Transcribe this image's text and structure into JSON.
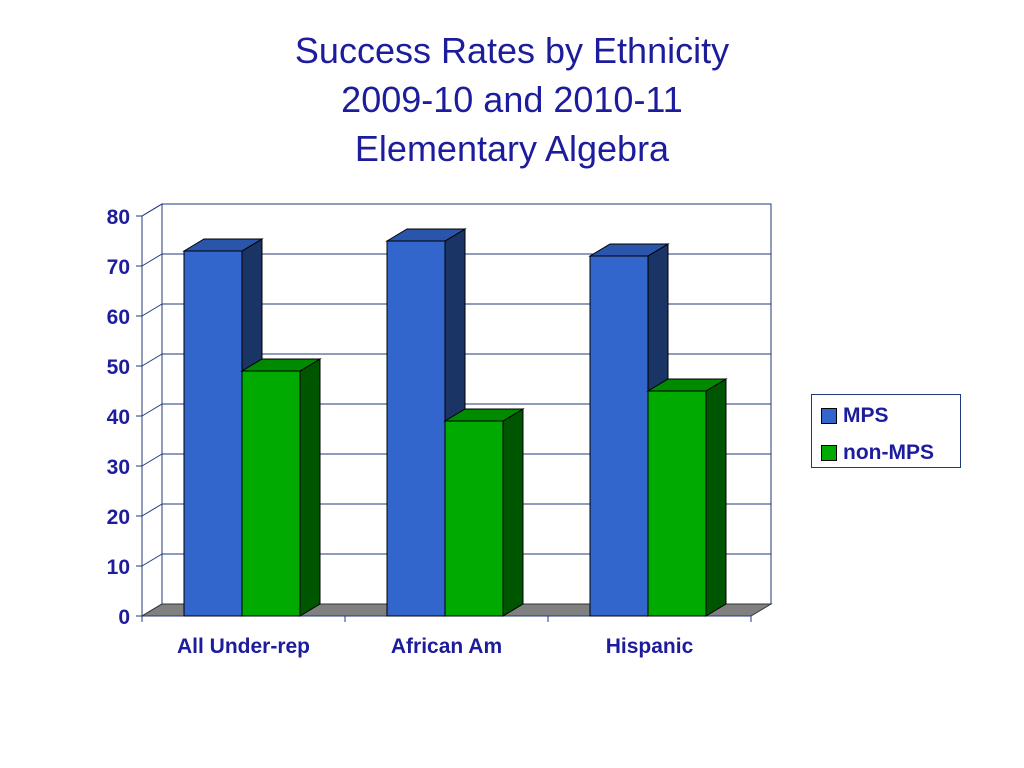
{
  "chart_data": {
    "type": "bar",
    "title_lines": [
      "Success Rates by Ethnicity",
      "2009-10 and 2010-11",
      "Elementary Algebra"
    ],
    "categories": [
      "All Under-rep",
      "African Am",
      "Hispanic"
    ],
    "series": [
      {
        "name": "MPS",
        "values": [
          73,
          75,
          72
        ],
        "color": "#3366cc",
        "side_color": "#1b3466",
        "top_color": "#2a55aa"
      },
      {
        "name": "non-MPS",
        "values": [
          49,
          39,
          45
        ],
        "color": "#00aa00",
        "side_color": "#005500",
        "top_color": "#008a00"
      }
    ],
    "y_ticks": [
      "0",
      "10",
      "20",
      "30",
      "40",
      "50",
      "60",
      "70",
      "80"
    ],
    "ylim": [
      0,
      80
    ],
    "grid": true,
    "legend_position": "right",
    "bar_style": "3d"
  }
}
